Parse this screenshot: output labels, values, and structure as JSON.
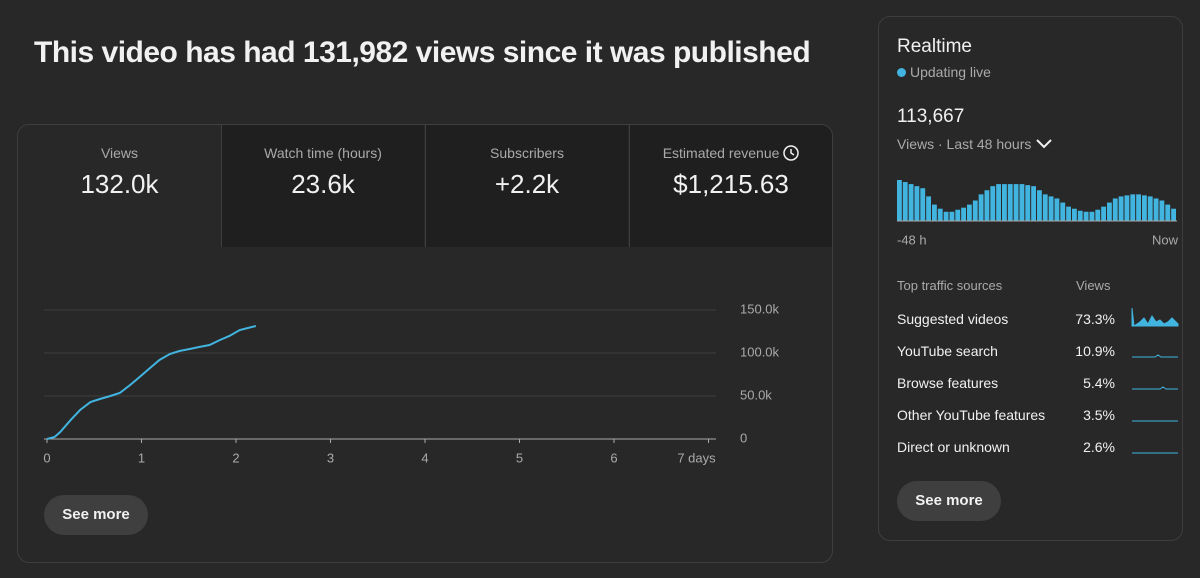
{
  "header": {
    "title": "This video has had 131,982 views since it was published"
  },
  "metrics": [
    {
      "label": "Views",
      "value": "132.0k"
    },
    {
      "label": "Watch time (hours)",
      "value": "23.6k"
    },
    {
      "label": "Subscribers",
      "value": "+2.2k"
    },
    {
      "label": "Estimated revenue",
      "value": "$1,215.63"
    }
  ],
  "views_chart": {
    "type": "line",
    "color": "#41b4e0",
    "x": [
      0,
      0.08,
      0.14,
      0.25,
      0.35,
      0.46,
      0.56,
      0.67,
      0.77,
      0.88,
      0.98,
      1.09,
      1.19,
      1.3,
      1.4,
      1.51,
      1.61,
      1.72,
      1.83,
      1.93,
      2.04,
      2.21
    ],
    "values": [
      0,
      2300,
      8100,
      22000,
      33700,
      43000,
      46500,
      50000,
      53500,
      62800,
      72100,
      82600,
      91900,
      98800,
      102300,
      104700,
      107000,
      109300,
      115100,
      119800,
      126700,
      131400
    ],
    "xlim": [
      0,
      7
    ],
    "ylim": [
      0,
      150000
    ],
    "xticks": [
      0,
      1,
      2,
      3,
      4,
      5,
      6,
      {
        "value": 7,
        "label": "7 days"
      }
    ],
    "yticks": [
      0,
      {
        "value": 50000,
        "label": "50.0k"
      },
      {
        "value": 100000,
        "label": "100.0k"
      },
      {
        "value": 150000,
        "label": "150.0k"
      }
    ],
    "grid": true
  },
  "see_more": "See more",
  "realtime": {
    "title": "Realtime",
    "status": "Updating live",
    "total": "113,667",
    "period": "Views · Last 48 hours",
    "chart": {
      "type": "bar",
      "color": "#41b4e0",
      "values": [
        4000,
        3800,
        3600,
        3400,
        3200,
        2400,
        1600,
        1200,
        900,
        900,
        1100,
        1300,
        1600,
        2000,
        2600,
        3000,
        3400,
        3600,
        3600,
        3600,
        3600,
        3600,
        3500,
        3400,
        3000,
        2600,
        2400,
        2200,
        1800,
        1400,
        1200,
        1000,
        900,
        900,
        1100,
        1400,
        1800,
        2200,
        2400,
        2500,
        2600,
        2600,
        2500,
        2400,
        2200,
        2000,
        1600,
        1200
      ],
      "start_label": "-48 h",
      "end_label": "Now"
    },
    "traffic": {
      "header": [
        "Top traffic sources",
        "Views"
      ],
      "rows": [
        [
          "Suggested videos",
          "73.3%"
        ],
        [
          "YouTube search",
          "10.9%"
        ],
        [
          "Browse features",
          "5.4%"
        ],
        [
          "Other YouTube features",
          "3.5%"
        ],
        [
          "Direct or unknown",
          "2.6%"
        ]
      ]
    },
    "see_more": "See more"
  }
}
